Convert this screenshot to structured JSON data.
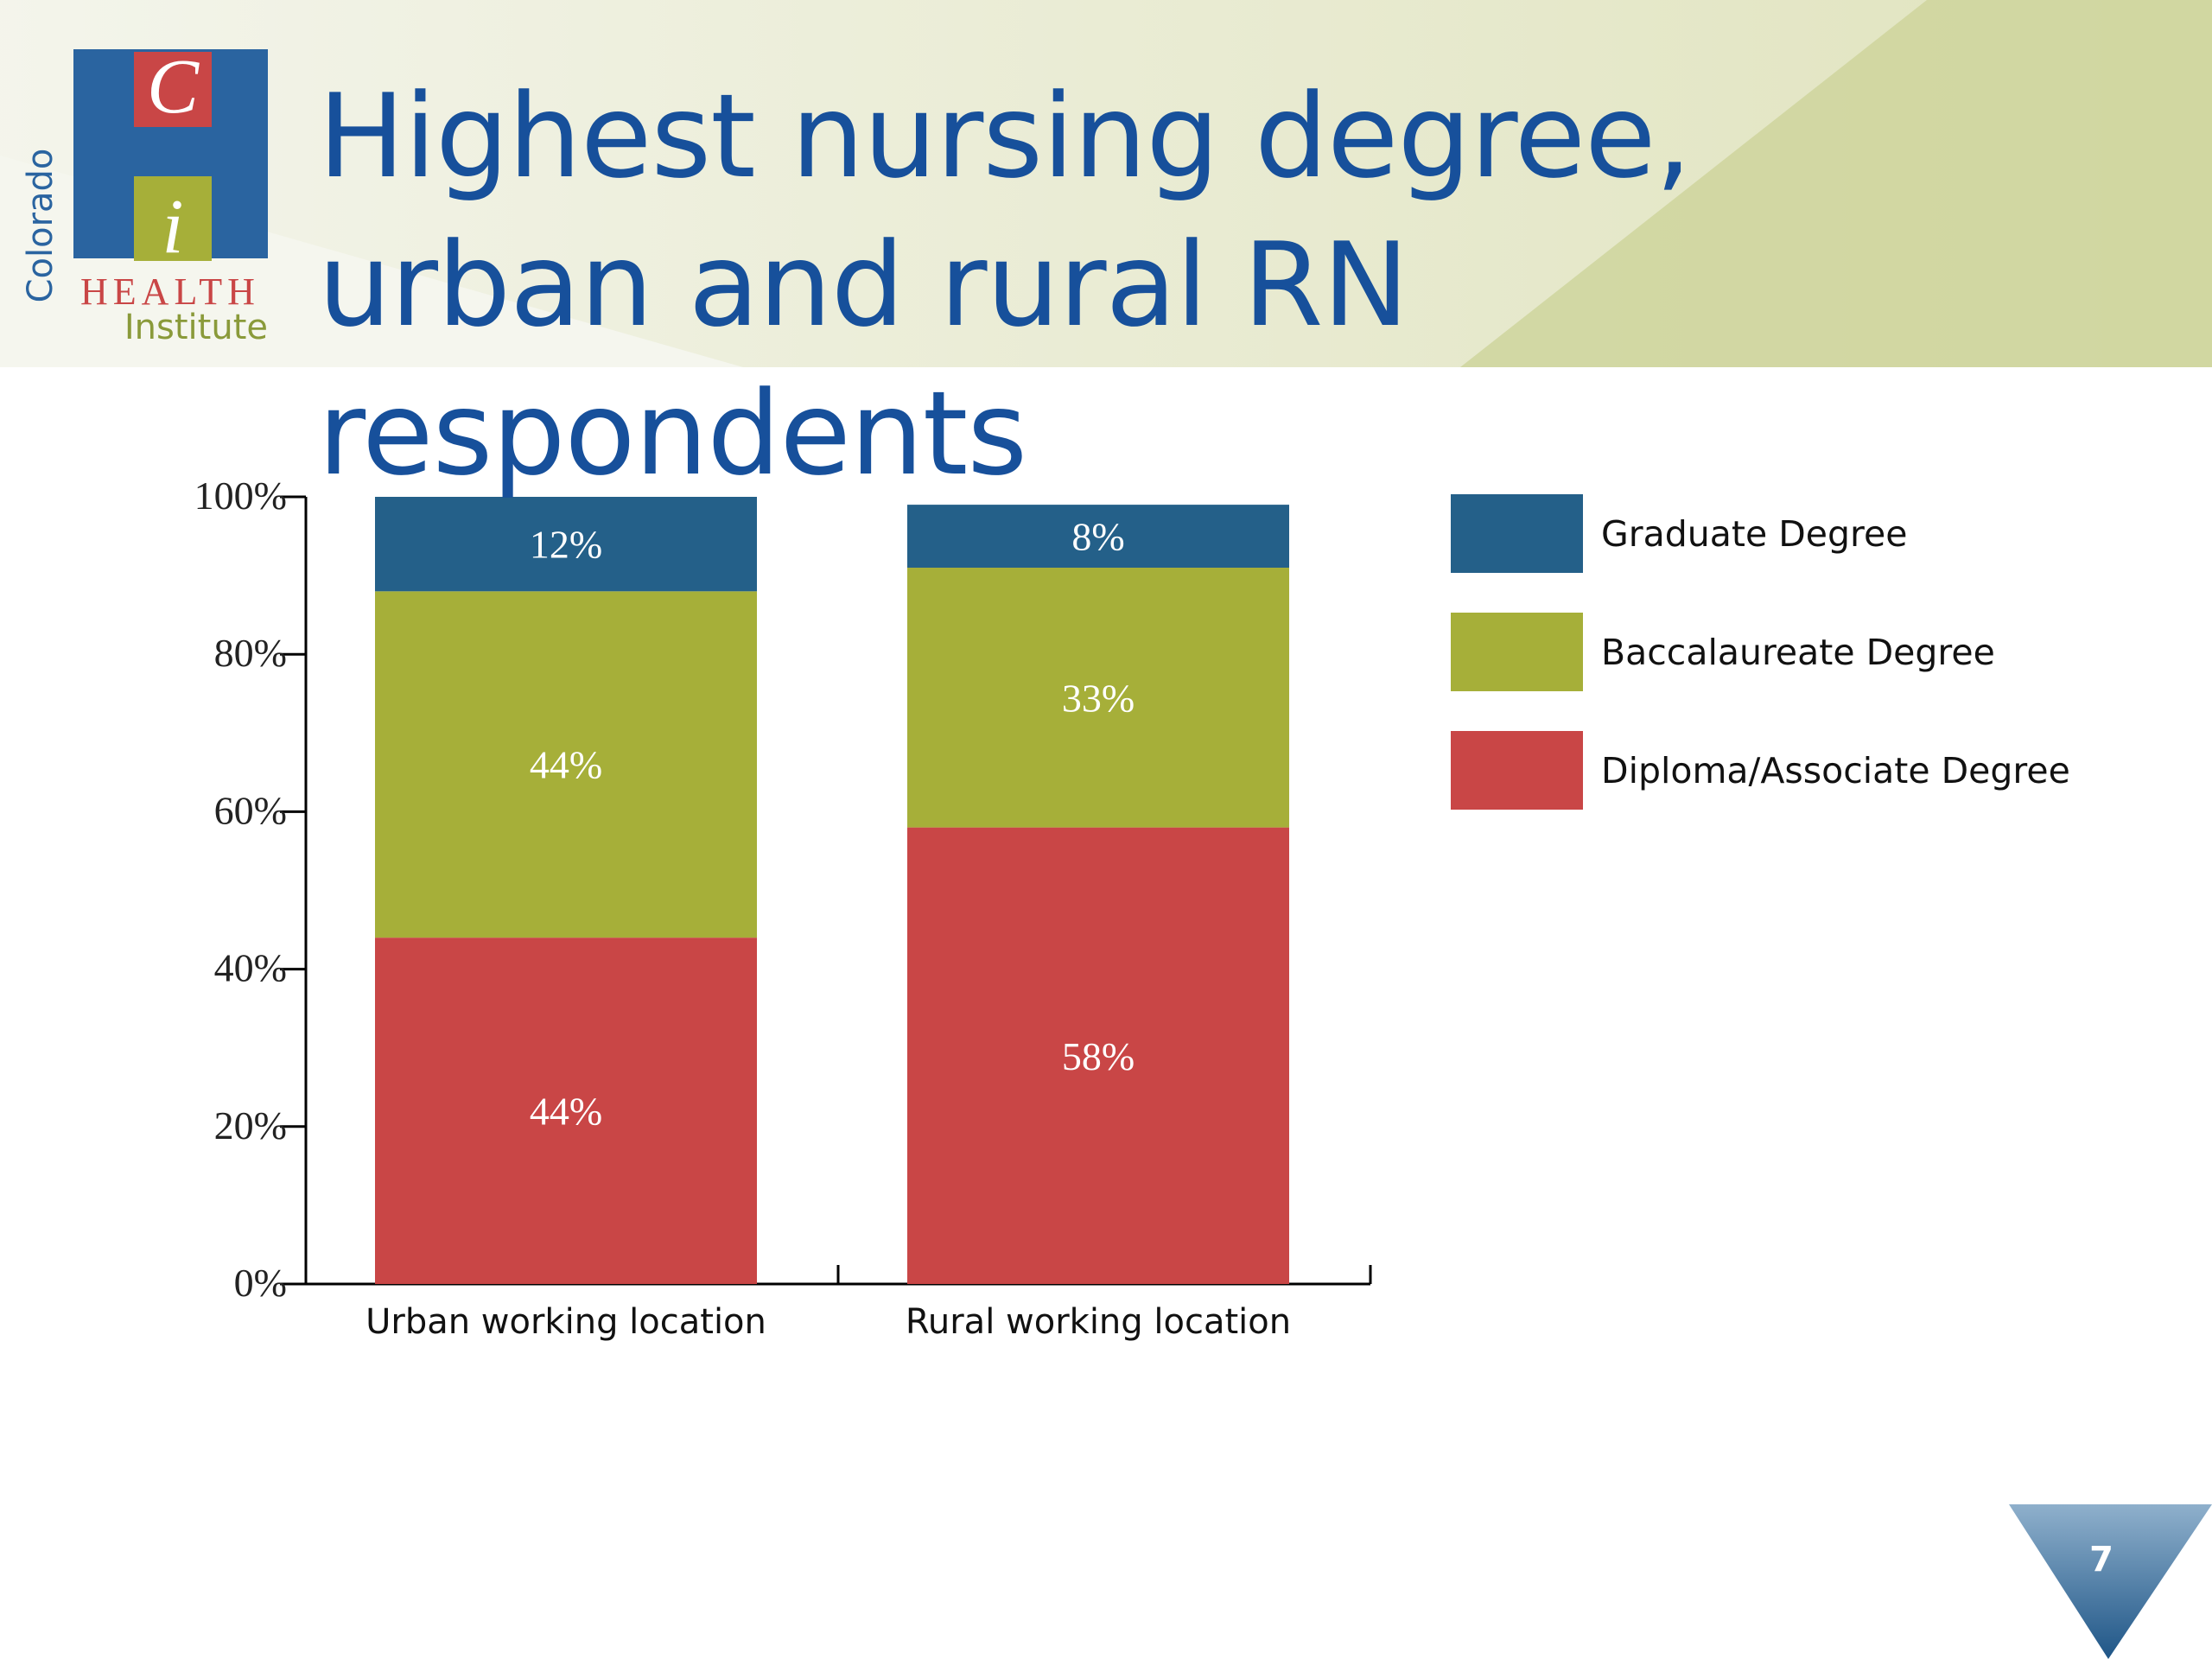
{
  "chart_data": {
    "type": "stacked_bar",
    "title": "Highest nursing degree, urban and rural RN respondents",
    "categories": [
      "Urban working location",
      "Rural working location"
    ],
    "series": [
      {
        "name": "Diploma/Associate Degree",
        "color": "#c94646",
        "values": [
          44,
          58
        ],
        "value_labels": [
          "44%",
          "58%"
        ]
      },
      {
        "name": "Baccalaureate Degree",
        "color": "#a6af39",
        "values": [
          44,
          33
        ],
        "value_labels": [
          "44%",
          "33%"
        ]
      },
      {
        "name": "Graduate Degree",
        "color": "#246089",
        "values": [
          12,
          8
        ],
        "value_labels": [
          "12%",
          "8%"
        ]
      }
    ],
    "ylim": [
      0,
      100
    ],
    "yticks": [
      {
        "value": 0,
        "label": "0%"
      },
      {
        "value": 20,
        "label": "20%"
      },
      {
        "value": 40,
        "label": "40%"
      },
      {
        "value": 60,
        "label": "60%"
      },
      {
        "value": 80,
        "label": "80%"
      },
      {
        "value": 100,
        "label": "100%"
      }
    ],
    "legend": "right"
  },
  "logo": {
    "letter_top": "C",
    "letter_bottom": "i",
    "side": "Colorado",
    "name": "HEALTH",
    "subname": "Institute"
  },
  "page_number": "7"
}
